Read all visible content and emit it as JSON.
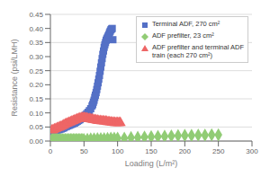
{
  "chart_data": {
    "type": "scatter",
    "title": "",
    "xlabel": "Loading (L/m²)",
    "ylabel": "Resistance (psi/LMH)",
    "xlim": [
      0,
      300
    ],
    "ylim": [
      0,
      0.45
    ],
    "xticks": [
      0,
      50,
      100,
      150,
      200,
      250,
      300
    ],
    "yticks": [
      {
        "value": 0.0,
        "label": "0.00"
      },
      {
        "value": 0.05,
        "label": "0.05"
      },
      {
        "value": 0.1,
        "label": "0.10"
      },
      {
        "value": 0.15,
        "label": "0.15"
      },
      {
        "value": 0.2,
        "label": "0.20"
      },
      {
        "value": 0.25,
        "label": "0.25"
      },
      {
        "value": 0.3,
        "label": "0.30"
      },
      {
        "value": 0.35,
        "label": "0.35"
      },
      {
        "value": 0.4,
        "label": "0.40"
      },
      {
        "value": 0.45,
        "label": "0.45"
      }
    ],
    "grid": "y",
    "legend": "upper right",
    "series": [
      {
        "name": "Terminal ADF, 270 cm²",
        "marker": "square",
        "color": "#5470c6",
        "x": [
          2,
          4,
          5,
          6,
          8,
          10,
          12,
          14,
          16,
          18,
          20,
          22,
          24,
          26,
          28,
          30,
          32,
          34,
          36,
          38,
          40,
          42,
          44,
          46,
          48,
          50,
          52,
          54,
          56,
          58,
          60,
          62,
          63,
          64,
          65,
          66,
          67,
          68,
          69,
          70,
          71,
          72,
          73,
          74,
          75,
          76,
          77,
          78,
          79,
          80,
          81,
          82,
          83,
          84,
          85,
          86,
          87,
          88,
          89,
          90,
          91,
          92,
          93
        ],
        "values": [
          0.033,
          0.035,
          0.035,
          0.036,
          0.037,
          0.038,
          0.04,
          0.042,
          0.043,
          0.045,
          0.047,
          0.05,
          0.052,
          0.054,
          0.056,
          0.058,
          0.06,
          0.062,
          0.064,
          0.067,
          0.07,
          0.073,
          0.076,
          0.08,
          0.083,
          0.087,
          0.092,
          0.097,
          0.102,
          0.108,
          0.115,
          0.125,
          0.13,
          0.138,
          0.145,
          0.155,
          0.163,
          0.172,
          0.183,
          0.195,
          0.207,
          0.22,
          0.233,
          0.248,
          0.263,
          0.278,
          0.293,
          0.308,
          0.32,
          0.333,
          0.342,
          0.35,
          0.358,
          0.363,
          0.368,
          0.373,
          0.378,
          0.385,
          0.39,
          0.395,
          0.398,
          0.4,
          0.36
        ]
      },
      {
        "name": "ADF prefilter, 23 cm²",
        "marker": "diamond",
        "color": "#91cc75",
        "x": [
          2,
          3,
          4,
          5,
          6,
          7,
          8,
          9,
          10,
          12,
          14,
          16,
          18,
          20,
          22,
          24,
          26,
          28,
          30,
          32,
          34,
          36,
          38,
          40,
          42,
          44,
          46,
          48,
          50,
          55,
          60,
          65,
          70,
          75,
          80,
          85,
          90,
          95,
          100,
          110,
          120,
          130,
          140,
          150,
          160,
          170,
          180,
          190,
          200,
          210,
          220,
          230,
          240,
          250
        ],
        "values": [
          0.005,
          0.005,
          0.005,
          0.005,
          0.005,
          0.005,
          0.005,
          0.005,
          0.005,
          0.005,
          0.005,
          0.005,
          0.005,
          0.005,
          0.005,
          0.005,
          0.005,
          0.005,
          0.005,
          0.005,
          0.005,
          0.005,
          0.005,
          0.005,
          0.005,
          0.005,
          0.005,
          0.005,
          0.005,
          0.006,
          0.007,
          0.007,
          0.008,
          0.008,
          0.008,
          0.009,
          0.01,
          0.01,
          0.01,
          0.01,
          0.012,
          0.013,
          0.014,
          0.015,
          0.016,
          0.017,
          0.018,
          0.019,
          0.02,
          0.02,
          0.021,
          0.021,
          0.022,
          0.022
        ]
      },
      {
        "name": "ADF prefilter and terminal ADF\ntrain (each 270 cm²)",
        "marker": "triangle",
        "color": "#ee6666",
        "x": [
          2,
          4,
          6,
          8,
          10,
          12,
          14,
          16,
          18,
          20,
          22,
          24,
          26,
          28,
          30,
          32,
          34,
          36,
          38,
          40,
          42,
          44,
          46,
          48,
          50,
          52,
          54,
          56,
          58,
          60,
          62,
          64,
          66,
          68,
          70,
          72,
          74,
          76,
          78,
          80,
          82,
          84,
          86,
          88,
          90,
          92,
          94,
          96,
          98,
          100,
          102,
          104
        ],
        "values": [
          0.038,
          0.04,
          0.042,
          0.044,
          0.046,
          0.048,
          0.05,
          0.052,
          0.054,
          0.057,
          0.06,
          0.062,
          0.064,
          0.066,
          0.068,
          0.07,
          0.072,
          0.074,
          0.076,
          0.078,
          0.08,
          0.081,
          0.082,
          0.083,
          0.083,
          0.082,
          0.081,
          0.08,
          0.079,
          0.078,
          0.077,
          0.076,
          0.075,
          0.074,
          0.073,
          0.072,
          0.072,
          0.071,
          0.071,
          0.07,
          0.07,
          0.069,
          0.068,
          0.068,
          0.067,
          0.066,
          0.066,
          0.065,
          0.065,
          0.065,
          0.065,
          0.065
        ]
      }
    ]
  }
}
